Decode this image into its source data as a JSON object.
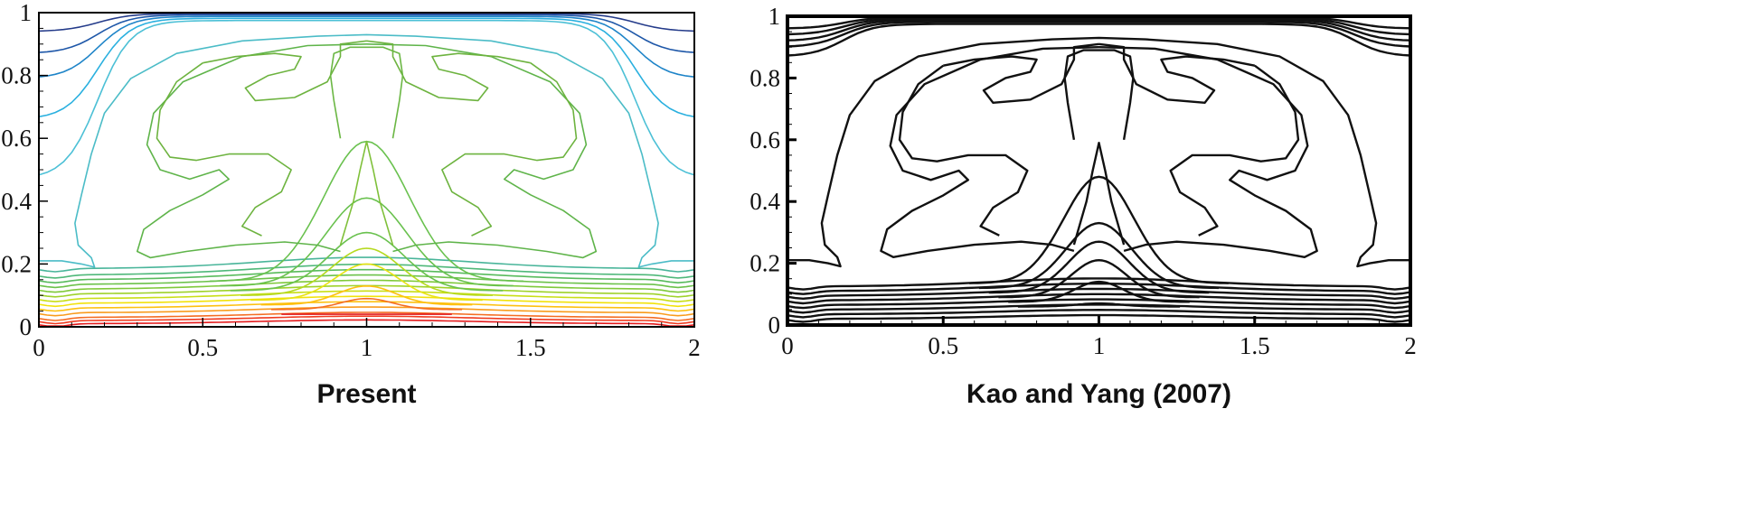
{
  "panels": [
    {
      "caption": "Present",
      "style": "colored",
      "frame_color": "#000000",
      "xticks": [
        "0",
        "0.5",
        "1",
        "1.5",
        "2"
      ],
      "yticks": [
        "0",
        "0.2",
        "0.4",
        "0.6",
        "0.8",
        "1"
      ]
    },
    {
      "caption": "Kao and Yang (2007)",
      "style": "black",
      "frame_color": "#000000",
      "xticks": [
        "0",
        "0.5",
        "1",
        "1.5",
        "2"
      ],
      "yticks": [
        "0",
        "0.2",
        "0.4",
        "0.6",
        "0.8",
        "1"
      ]
    }
  ],
  "chart_data": [
    {
      "type": "contour",
      "title": "Present",
      "xlim": [
        0,
        2
      ],
      "ylim": [
        0,
        1
      ],
      "xticks": [
        0,
        0.5,
        1,
        1.5,
        2
      ],
      "yticks": [
        0,
        0.2,
        0.4,
        0.6,
        0.8,
        1
      ],
      "grid": false,
      "legend": "none",
      "line_colors": "rainbow: red near y=0, yellow, green in interior, cyan, blue near y=1",
      "contour_levels": {
        "bottom_layer_heights_at_walls": [
          0.01,
          0.02,
          0.03,
          0.045,
          0.06,
          0.075,
          0.09,
          0.105,
          0.12,
          0.135,
          0.15,
          0.165,
          0.185
        ],
        "bottom_layer_colors": [
          "#e31a1c",
          "#ef3b20",
          "#f46d23",
          "#f99b1c",
          "#fdc010",
          "#f2e20a",
          "#c9de16",
          "#9fd22a",
          "#7fc93a",
          "#6cc24a",
          "#58bb5c",
          "#4fb87a",
          "#49b59a"
        ],
        "plume_peak_heights_at_x1": [
          0.04,
          0.09,
          0.13,
          0.2,
          0.25,
          0.3,
          0.41,
          0.59
        ],
        "top_layer_wall_heights": [
          0.47,
          0.66,
          0.79,
          0.87,
          0.94
        ],
        "top_layer_colors": [
          "#4cc0d6",
          "#2ab0df",
          "#1e84c8",
          "#1e57a8",
          "#243b8a"
        ]
      }
    },
    {
      "type": "contour",
      "title": "Kao and Yang (2007)",
      "xlim": [
        0,
        2
      ],
      "ylim": [
        0,
        1
      ],
      "xticks": [
        0,
        0.5,
        1,
        1.5,
        2
      ],
      "yticks": [
        0,
        0.2,
        0.4,
        0.6,
        0.8,
        1
      ],
      "grid": false,
      "legend": "none",
      "line_colors": "black",
      "contour_levels": {
        "bottom_layer_heights_at_walls": [
          0.02,
          0.035,
          0.05,
          0.065,
          0.08,
          0.095,
          0.11,
          0.125
        ],
        "plume_peak_heights_at_x1": [
          0.07,
          0.14,
          0.21,
          0.27,
          0.33,
          0.48
        ],
        "top_layer_wall_heights": [
          0.87,
          0.9,
          0.92,
          0.94,
          0.96
        ]
      }
    }
  ]
}
